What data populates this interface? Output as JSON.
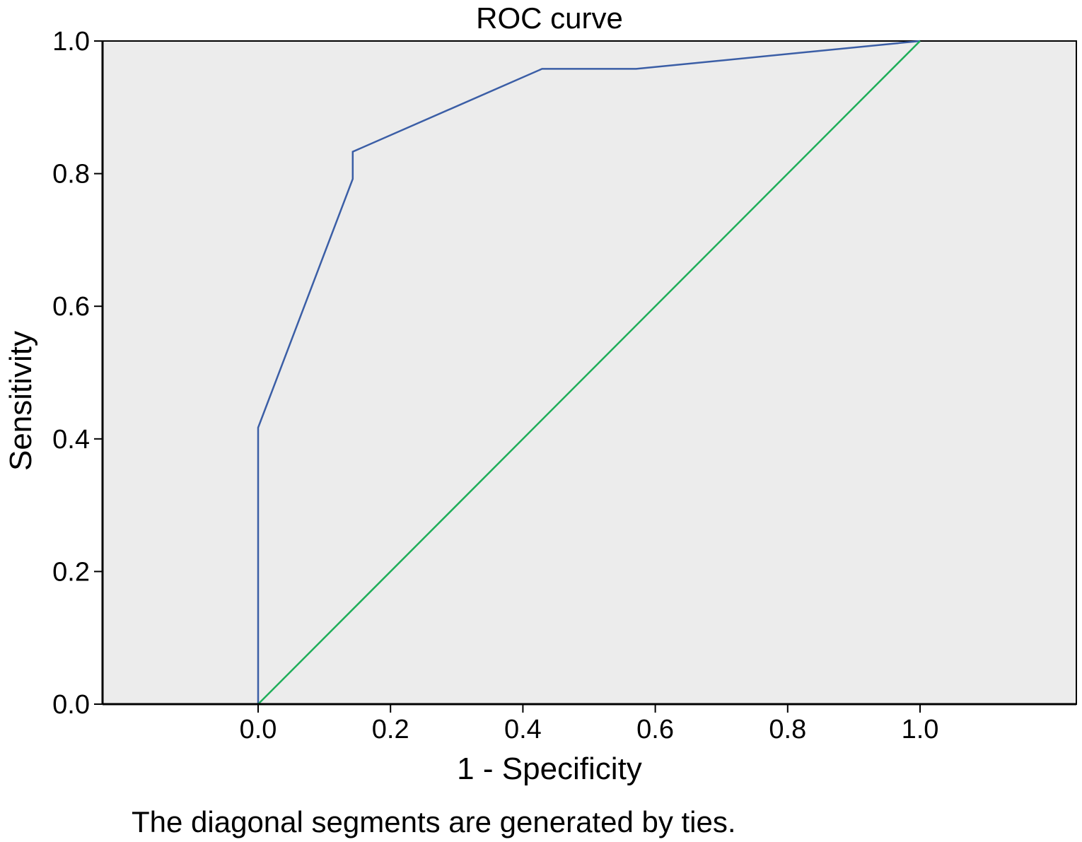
{
  "chart_data": {
    "type": "line",
    "title": "ROC curve",
    "xlabel": "1 - Specificity",
    "ylabel": "Sensitivity",
    "xlim": [
      0.0,
      1.0
    ],
    "ylim": [
      0.0,
      1.0
    ],
    "xticks": [
      "0.0",
      "0.2",
      "0.4",
      "0.6",
      "0.8",
      "1.0"
    ],
    "yticks": [
      "0.0",
      "0.2",
      "0.4",
      "0.6",
      "0.8",
      "1.0"
    ],
    "grid": false,
    "legend": "none",
    "background_color": "#ececec",
    "series": [
      {
        "color": "#3b5ea6",
        "x": [
          0.0,
          0.0,
          0.143,
          0.143,
          0.429,
          0.571,
          1.0
        ],
        "y": [
          0.0,
          0.417,
          0.792,
          0.833,
          0.958,
          0.958,
          1.0
        ]
      },
      {
        "color": "#1fae5a",
        "x": [
          0.0,
          1.0
        ],
        "y": [
          0.0,
          1.0
        ]
      }
    ],
    "footnote": "The diagonal segments are generated by ties."
  }
}
